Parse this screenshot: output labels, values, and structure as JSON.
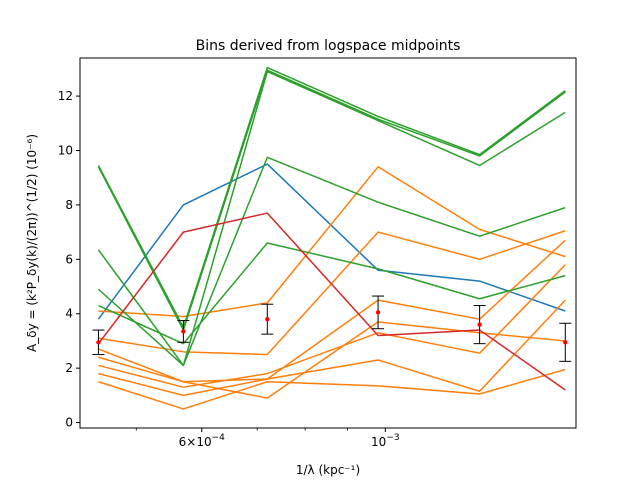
{
  "chart_data": {
    "type": "line",
    "title": "Bins derived from logspace midpoints",
    "xlabel": "1/λ (kpc⁻¹)",
    "ylabel": "A_δy = (k²P_δy(k)/(2π))^(1/2) (10⁻⁶)",
    "x_scale": "log",
    "xlim": [
      0.0004275,
      0.0017
    ],
    "ylim": [
      -0.2,
      13.4
    ],
    "grid": false,
    "x_ticks": [
      {
        "value": 0.0006,
        "label_base": "6×10",
        "label_exp": "−4"
      },
      {
        "value": 0.001,
        "label_base": "10",
        "label_exp": "−3"
      }
    ],
    "x_minor_ticks": [
      0.0005,
      0.0007,
      0.0008,
      0.0009
    ],
    "y_ticks": [
      0,
      2,
      4,
      6,
      8,
      10,
      12
    ],
    "x": [
      0.00045,
      0.00057,
      0.00072,
      0.00098,
      0.0013,
      0.00165
    ],
    "colors": {
      "blue": "#1f77b4",
      "orange": "#ff7f0e",
      "green": "#2ca02c",
      "red": "#d62728",
      "errorbar": "#000000",
      "marker": "#ff0000"
    },
    "series": [
      {
        "color": "blue",
        "values": [
          3.8,
          8.0,
          9.5,
          5.6,
          5.2,
          4.1
        ]
      },
      {
        "color": "orange",
        "values": [
          4.1,
          3.9,
          4.4,
          9.4,
          7.1,
          6.1
        ]
      },
      {
        "color": "orange",
        "values": [
          3.1,
          2.6,
          2.5,
          7.0,
          6.0,
          7.05
        ]
      },
      {
        "color": "orange",
        "values": [
          2.4,
          1.5,
          1.6,
          4.5,
          3.8,
          6.7
        ]
      },
      {
        "color": "orange",
        "values": [
          2.1,
          1.3,
          1.8,
          3.3,
          2.55,
          5.8
        ]
      },
      {
        "color": "orange",
        "values": [
          1.8,
          1.0,
          1.6,
          2.3,
          1.15,
          4.5
        ]
      },
      {
        "color": "orange",
        "values": [
          1.5,
          0.5,
          1.5,
          1.35,
          1.05,
          1.95
        ]
      },
      {
        "color": "orange",
        "values": [
          2.7,
          1.5,
          0.9,
          3.7,
          3.3,
          3.0
        ]
      },
      {
        "color": "green",
        "values": [
          9.45,
          3.5,
          13.05,
          11.25,
          9.85,
          12.2
        ]
      },
      {
        "color": "green",
        "values": [
          9.4,
          3.4,
          12.95,
          11.15,
          9.8,
          12.15
        ]
      },
      {
        "color": "green",
        "values": [
          6.35,
          2.1,
          12.9,
          11.1,
          9.45,
          11.4
        ]
      },
      {
        "color": "green",
        "values": [
          4.9,
          2.1,
          9.75,
          8.1,
          6.85,
          7.9
        ]
      },
      {
        "color": "green",
        "values": [
          4.3,
          2.9,
          6.6,
          5.65,
          4.55,
          5.4
        ]
      },
      {
        "color": "red",
        "values": [
          2.9,
          7.0,
          7.7,
          3.2,
          3.4,
          1.2
        ]
      }
    ],
    "means": {
      "values": [
        2.95,
        3.35,
        3.8,
        4.05,
        3.6,
        2.95
      ],
      "errors": [
        0.45,
        0.4,
        0.55,
        0.6,
        0.7,
        0.7
      ]
    }
  }
}
